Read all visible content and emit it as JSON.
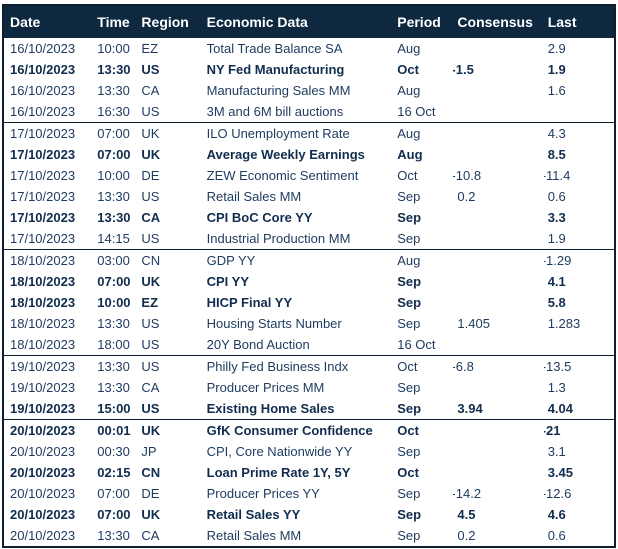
{
  "table": {
    "columns": [
      "Date",
      "Time",
      "Region",
      "Economic Data",
      "Period",
      "Consensus",
      "Last"
    ],
    "groups": [
      {
        "date": "16/10/2023",
        "rows": [
          {
            "time": "10:00",
            "region": "EZ",
            "event": "Total Trade Balance SA",
            "period": "Aug",
            "consensus": "",
            "last": "2.9",
            "bold": false
          },
          {
            "time": "13:30",
            "region": "US",
            "event": "NY Fed Manufacturing",
            "period": "Oct",
            "consensus": "-1.5",
            "last": "1.9",
            "bold": true
          },
          {
            "time": "13:30",
            "region": "CA",
            "event": "Manufacturing Sales MM",
            "period": "Aug",
            "consensus": "",
            "last": "1.6",
            "bold": false
          },
          {
            "time": "16:30",
            "region": "US",
            "event": "3M and 6M bill auctions",
            "period": "16 Oct",
            "consensus": "",
            "last": "",
            "bold": false
          }
        ]
      },
      {
        "date": "17/10/2023",
        "rows": [
          {
            "time": "07:00",
            "region": "UK",
            "event": "ILO Unemployment Rate",
            "period": "Aug",
            "consensus": "",
            "last": "4.3",
            "bold": false
          },
          {
            "time": "07:00",
            "region": "UK",
            "event": "Average Weekly Earnings",
            "period": "Aug",
            "consensus": "",
            "last": "8.5",
            "bold": true
          },
          {
            "time": "10:00",
            "region": "DE",
            "event": "ZEW Economic Sentiment",
            "period": "Oct",
            "consensus": "-10.8",
            "last": "-11.4",
            "bold": false
          },
          {
            "time": "13:30",
            "region": "US",
            "event": "Retail Sales MM",
            "period": "Sep",
            "consensus": "0.2",
            "last": "0.6",
            "bold": false
          },
          {
            "time": "13:30",
            "region": "CA",
            "event": "CPI BoC Core YY",
            "period": "Sep",
            "consensus": "",
            "last": "3.3",
            "bold": true
          },
          {
            "time": "14:15",
            "region": "US",
            "event": "Industrial Production MM",
            "period": "Sep",
            "consensus": "",
            "last": "1.9",
            "bold": false
          }
        ]
      },
      {
        "date": "18/10/2023",
        "rows": [
          {
            "time": "03:00",
            "region": "CN",
            "event": "GDP YY",
            "period": "Aug",
            "consensus": "",
            "last": "-1.29",
            "bold": false
          },
          {
            "time": "07:00",
            "region": "UK",
            "event": "CPI YY",
            "period": "Sep",
            "consensus": "",
            "last": "4.1",
            "bold": true
          },
          {
            "time": "10:00",
            "region": "EZ",
            "event": "HICP Final YY",
            "period": "Sep",
            "consensus": "",
            "last": "5.8",
            "bold": true
          },
          {
            "time": "13:30",
            "region": "US",
            "event": "Housing Starts Number",
            "period": "Sep",
            "consensus": "1.405",
            "last": "1.283",
            "bold": false
          },
          {
            "time": "18:00",
            "region": "US",
            "event": "20Y Bond Auction",
            "period": "16 Oct",
            "consensus": "",
            "last": "",
            "bold": false
          }
        ]
      },
      {
        "date": "19/10/2023",
        "rows": [
          {
            "time": "13:30",
            "region": "US",
            "event": "Philly Fed Business Indx",
            "period": "Oct",
            "consensus": "-6.8",
            "last": "-13.5",
            "bold": false
          },
          {
            "time": "13:30",
            "region": "CA",
            "event": "Producer Prices MM",
            "period": "Sep",
            "consensus": "",
            "last": "1.3",
            "bold": false
          },
          {
            "time": "15:00",
            "region": "US",
            "event": "Existing Home Sales",
            "period": "Sep",
            "consensus": "3.94",
            "last": "4.04",
            "bold": true
          }
        ]
      },
      {
        "date": "20/10/2023",
        "rows": [
          {
            "time": "00:01",
            "region": "UK",
            "event": "GfK Consumer Confidence",
            "period": "Oct",
            "consensus": "",
            "last": "-21",
            "bold": true
          },
          {
            "time": "00:30",
            "region": "JP",
            "event": "CPI, Core Nationwide YY",
            "period": "Sep",
            "consensus": "",
            "last": "3.1",
            "bold": false
          },
          {
            "time": "02:15",
            "region": "CN",
            "event": "Loan Prime Rate 1Y, 5Y",
            "period": "Oct",
            "consensus": "",
            "last": "3.45",
            "bold": true
          },
          {
            "time": "07:00",
            "region": "DE",
            "event": "Producer Prices YY",
            "period": "Sep",
            "consensus": "-14.2",
            "last": "-12.6",
            "bold": false
          },
          {
            "time": "07:00",
            "region": "UK",
            "event": "Retail Sales YY",
            "period": "Sep",
            "consensus": "4.5",
            "last": "4.6",
            "bold": true
          },
          {
            "time": "13:30",
            "region": "CA",
            "event": "Retail Sales MM",
            "period": "Sep",
            "consensus": "0.2",
            "last": "0.6",
            "bold": false
          }
        ]
      }
    ]
  },
  "colors": {
    "header_bg": "#0e2840",
    "header_text": "#ffffff",
    "body_text": "#1e3a5f",
    "bold_text": "#112d4e",
    "border": "#101f30",
    "background": "#ffffff"
  }
}
